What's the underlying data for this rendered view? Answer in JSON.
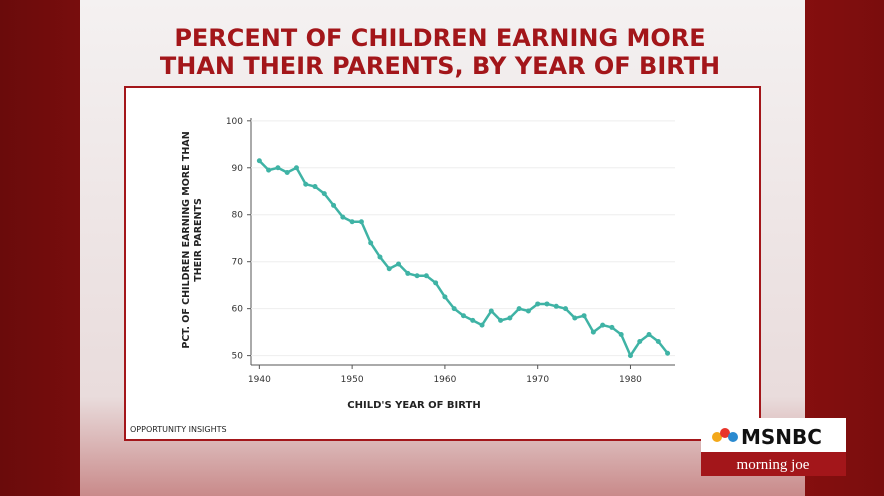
{
  "chart_data": {
    "type": "line",
    "title": [
      "PERCENT OF CHILDREN EARNING MORE",
      "THAN THEIR PARENTS, BY YEAR OF BIRTH"
    ],
    "x_label": "CHILD'S YEAR OF BIRTH",
    "y_label": [
      "PCT. OF CHILDREN EARNING MORE THAN",
      "THEIR PARENTS"
    ],
    "source": "OPPORTUNITY INSIGHTS",
    "x": [
      1940,
      1941,
      1942,
      1943,
      1944,
      1945,
      1946,
      1947,
      1948,
      1949,
      1950,
      1951,
      1952,
      1953,
      1954,
      1955,
      1956,
      1957,
      1958,
      1959,
      1960,
      1961,
      1962,
      1963,
      1964,
      1965,
      1966,
      1967,
      1968,
      1969,
      1970,
      1971,
      1972,
      1973,
      1974,
      1975,
      1976,
      1977,
      1978,
      1979,
      1980,
      1981,
      1982,
      1983,
      1984
    ],
    "series": [
      {
        "color": "#3fb3a5",
        "values": [
          91.5,
          89.5,
          90,
          89,
          90,
          86.5,
          86,
          84.5,
          82,
          79.5,
          78.5,
          78.5,
          74,
          71,
          68.5,
          69.5,
          67.5,
          67,
          67,
          65.5,
          62.5,
          60,
          58.5,
          57.5,
          56.5,
          59.5,
          57.5,
          58,
          60,
          59.5,
          61,
          61,
          60.5,
          60,
          58,
          58.5,
          55,
          56.5,
          56,
          54.5,
          50,
          53,
          54.5,
          53,
          50.5
        ]
      }
    ],
    "xlim": [
      1939.1,
      1984.8
    ],
    "ylim": [
      48,
      100.6
    ],
    "xticks": [
      1940,
      1950,
      1960,
      1970,
      1980
    ],
    "yticks": [
      50,
      60,
      70,
      80,
      90,
      100
    ]
  },
  "broadcast": {
    "network": "MSNBC",
    "show": "morning joe"
  }
}
